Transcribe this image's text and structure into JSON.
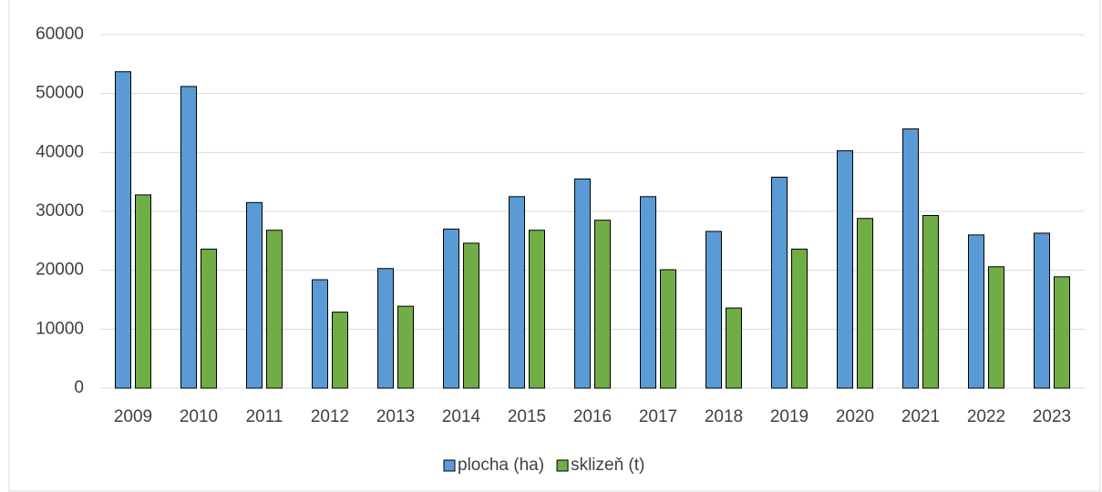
{
  "chart_data": {
    "type": "bar",
    "categories": [
      "2009",
      "2010",
      "2011",
      "2012",
      "2013",
      "2014",
      "2015",
      "2016",
      "2017",
      "2018",
      "2019",
      "2020",
      "2021",
      "2022",
      "2023"
    ],
    "series": [
      {
        "name": "plocha (ha)",
        "color": "#5b9bd5",
        "values": [
          53700,
          51200,
          31500,
          18400,
          20300,
          27000,
          32500,
          35500,
          32500,
          26600,
          35800,
          40300,
          44000,
          26000,
          26300
        ]
      },
      {
        "name": "sklizeň (t)",
        "color": "#70ad47",
        "values": [
          32800,
          23600,
          26800,
          12900,
          13900,
          24600,
          26800,
          28500,
          20100,
          13600,
          23600,
          28800,
          29300,
          20600,
          18900
        ]
      }
    ],
    "ylim": [
      0,
      60000
    ],
    "yticks": [
      0,
      10000,
      20000,
      30000,
      40000,
      50000,
      60000
    ],
    "grid": true,
    "legend": "bottom"
  }
}
